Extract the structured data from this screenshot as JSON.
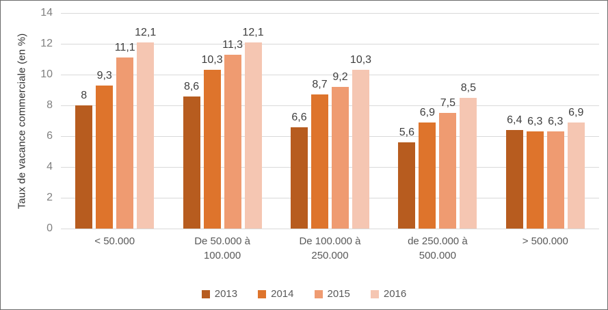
{
  "chart_data": {
    "type": "bar",
    "title": "",
    "xlabel": "",
    "ylabel": "Taux de vacance commerciale (en %)",
    "ylim": [
      0,
      14
    ],
    "yticks": [
      0,
      2,
      4,
      6,
      8,
      10,
      12,
      14
    ],
    "grid": true,
    "legend_position": "bottom",
    "decimal_separator": ",",
    "categories": [
      "< 50.000",
      "De 50.000 à 100.000",
      "De 100.000 à 250.000",
      "de 250.000 à 500.000",
      "> 500.000"
    ],
    "series": [
      {
        "name": "2013",
        "color": "#b75c1f",
        "values": [
          8,
          8.6,
          6.6,
          5.6,
          6.4
        ],
        "labels": [
          "8",
          "8,6",
          "6,6",
          "5,6",
          "6,4"
        ]
      },
      {
        "name": "2014",
        "color": "#de742c",
        "values": [
          9.3,
          10.3,
          8.7,
          6.9,
          6.3
        ],
        "labels": [
          "9,3",
          "10,3",
          "8,7",
          "6,9",
          "6,3"
        ]
      },
      {
        "name": "2015",
        "color": "#ef9b71",
        "values": [
          11.1,
          11.3,
          9.2,
          7.5,
          6.3
        ],
        "labels": [
          "11,1",
          "11,3",
          "9,2",
          "7,5",
          "6,3"
        ]
      },
      {
        "name": "2016",
        "color": "#f5c6b2",
        "values": [
          12.1,
          12.1,
          10.3,
          8.5,
          6.9
        ],
        "labels": [
          "12,1",
          "12,1",
          "10,3",
          "8,5",
          "6,9"
        ]
      }
    ],
    "colors": {
      "gridline": "#d9d9d9",
      "tick_text": "#808080",
      "category_text": "#595959",
      "legend_text": "#595959",
      "data_label_text": "#3d3d3d"
    }
  }
}
